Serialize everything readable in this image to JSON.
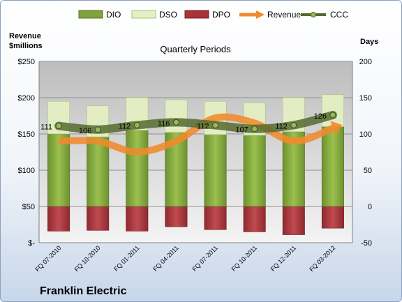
{
  "company": "Franklin Electric",
  "colors": {
    "dio": "#7fa33a",
    "dso": "#e4efc4",
    "dpo": "#a8343a",
    "revenue": "#f08a2c",
    "ccc": "#556b2f",
    "plot_top": "#bdbdbd",
    "plot_bottom": "#f4f4f4"
  },
  "chart_data": {
    "type": "bar",
    "title": "Quarterly Periods",
    "y_left_label": "Revenue\n$millions",
    "y_right_label": "Days",
    "y_left_ticks": [
      "$-",
      "$50",
      "$100",
      "$150",
      "$200",
      "$250"
    ],
    "y_left_range": [
      0,
      250
    ],
    "y_right_ticks": [
      "-50",
      "0",
      "50",
      "100",
      "150",
      "200"
    ],
    "y_right_range": [
      -50,
      200
    ],
    "categories": [
      "FQ 07-2010",
      "FQ 10-2010",
      "FQ 01-2011",
      "FQ 04-2011",
      "FQ 07-2011",
      "FQ 10-2011",
      "FQ 12-2011",
      "FQ 03-2012"
    ],
    "legend": [
      "DIO",
      "DSO",
      "DPO",
      "Revenue",
      "CCC"
    ],
    "legend_position": "top",
    "series": [
      {
        "name": "DIO",
        "axis": "right",
        "values": [
          100,
          96,
          105,
          102,
          99,
          98,
          103,
          110
        ]
      },
      {
        "name": "DSO",
        "axis": "right",
        "values": [
          45,
          43,
          45,
          45,
          46,
          45,
          47,
          44
        ]
      },
      {
        "name": "DPO",
        "axis": "right",
        "values": [
          -34,
          -33,
          -34,
          -28,
          -32,
          -35,
          -39,
          -30
        ]
      },
      {
        "name": "Revenue",
        "axis": "left",
        "values": [
          140,
          140,
          125,
          140,
          172,
          165,
          140,
          158
        ]
      },
      {
        "name": "CCC",
        "axis": "right",
        "values": [
          111,
          106,
          112,
          116,
          112,
          107,
          112,
          126
        ]
      }
    ],
    "ccc_labels": [
      "111",
      "106",
      "112",
      "116",
      "112",
      "107",
      "112",
      "126"
    ],
    "grid": true
  }
}
